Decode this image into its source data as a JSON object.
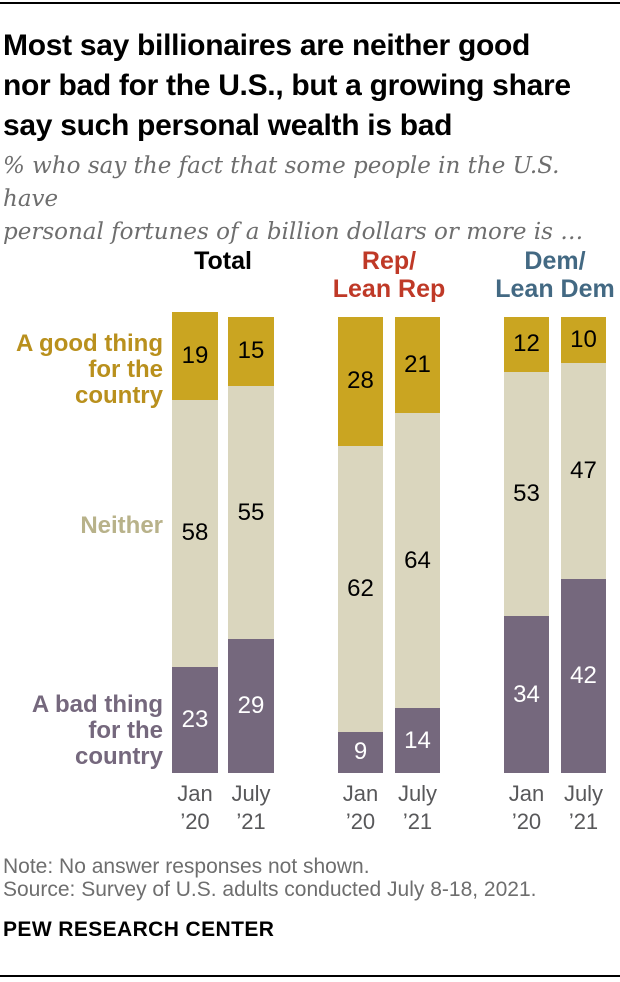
{
  "header": {
    "title_lines": [
      "Most say billionaires are neither good",
      "nor bad for the U.S., but a growing share",
      "say such personal wealth is bad"
    ],
    "subtitle_lines": [
      "% who say the fact that some people in the U.S. have",
      "personal fortunes of a billion dollars or more is …"
    ]
  },
  "chart_data": {
    "type": "bar",
    "stacked": true,
    "unit": "%",
    "ylim": [
      0,
      100
    ],
    "grid": false,
    "legend_position": "left",
    "segments": [
      {
        "key": "good",
        "label_lines": [
          "A good thing",
          "for the country"
        ],
        "label": "A good thing for the country",
        "color": "#CAA521",
        "label_color": "#B9901D",
        "value_color": "#000000"
      },
      {
        "key": "neither",
        "label_lines": [
          "Neither"
        ],
        "label": "Neither",
        "color": "#DAD6BE",
        "label_color": "#B8B28A",
        "value_color": "#000000"
      },
      {
        "key": "bad",
        "label_lines": [
          "A bad thing",
          "for the country"
        ],
        "label": "A bad thing for the country",
        "color": "#75687D",
        "label_color": "#75687D",
        "value_color": "#FFFFFF"
      }
    ],
    "groups": [
      {
        "key": "total",
        "header_lines": [
          "Total"
        ],
        "header_color": "#000000",
        "bars": [
          {
            "key": "jan20",
            "x_label_lines": [
              "Jan",
              "’20"
            ],
            "values": [
              19,
              58,
              23
            ]
          },
          {
            "key": "july21",
            "x_label_lines": [
              "July",
              "’21"
            ],
            "values": [
              15,
              55,
              29
            ]
          }
        ]
      },
      {
        "key": "rep-lean-rep",
        "header_lines": [
          "Rep/",
          "Lean Rep"
        ],
        "header_color": "#BF3927",
        "bars": [
          {
            "key": "jan20",
            "x_label_lines": [
              "Jan",
              "’20"
            ],
            "values": [
              28,
              62,
              9
            ]
          },
          {
            "key": "july21",
            "x_label_lines": [
              "July",
              "’21"
            ],
            "values": [
              21,
              64,
              14
            ]
          }
        ]
      },
      {
        "key": "dem-lean-dem",
        "header_lines": [
          "Dem/",
          "Lean Dem"
        ],
        "header_color": "#436983",
        "bars": [
          {
            "key": "jan20",
            "x_label_lines": [
              "Jan",
              "’20"
            ],
            "values": [
              12,
              53,
              34
            ]
          },
          {
            "key": "july21",
            "x_label_lines": [
              "July",
              "’21"
            ],
            "values": [
              10,
              47,
              42
            ]
          }
        ]
      }
    ]
  },
  "footer": {
    "note": "Note: No answer responses not shown.",
    "source": "Source: Survey of U.S. adults conducted July 8-18, 2021.",
    "brand": "PEW RESEARCH CENTER"
  }
}
